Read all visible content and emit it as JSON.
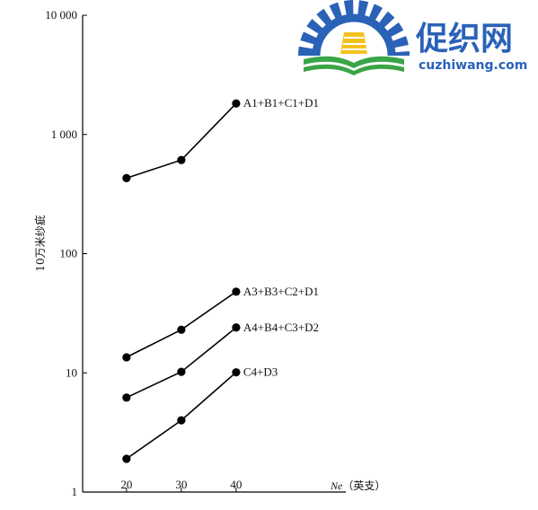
{
  "watermark": {
    "brand_text": "促织网",
    "site_text": "cuzhiwang.com",
    "colors": {
      "blue": "#2a62b7",
      "green": "#3aa547",
      "yellow": "#f4c21e"
    }
  },
  "chart_data": {
    "type": "line",
    "x_scale": "linear",
    "y_scale": "log",
    "x": [
      20,
      30,
      40
    ],
    "xlim": [
      12,
      60
    ],
    "ylim": [
      1,
      10000
    ],
    "x_ticks": [
      "20",
      "30",
      "40"
    ],
    "y_ticks": [
      {
        "value": 1,
        "label": "1"
      },
      {
        "value": 10,
        "label": "10"
      },
      {
        "value": 100,
        "label": "100"
      },
      {
        "value": 1000,
        "label": "1 000"
      },
      {
        "value": 10000,
        "label": "10 000"
      }
    ],
    "xlabel_italic": "Ne",
    "xlabel_rest": "（英支）",
    "ylabel": "10万米纱疵",
    "grid": false,
    "series": [
      {
        "name": "A1+B1+C1+D1",
        "values": [
          430,
          610,
          1820
        ]
      },
      {
        "name": "A3+B3+C2+D1",
        "values": [
          13.5,
          23,
          48
        ]
      },
      {
        "name": "A4+B4+C3+D2",
        "values": [
          6.2,
          10.2,
          24
        ]
      },
      {
        "name": "C4+D3",
        "values": [
          1.9,
          4.0,
          10.1
        ]
      }
    ],
    "colors": {
      "line": "#000000",
      "marker": "#000000"
    }
  }
}
